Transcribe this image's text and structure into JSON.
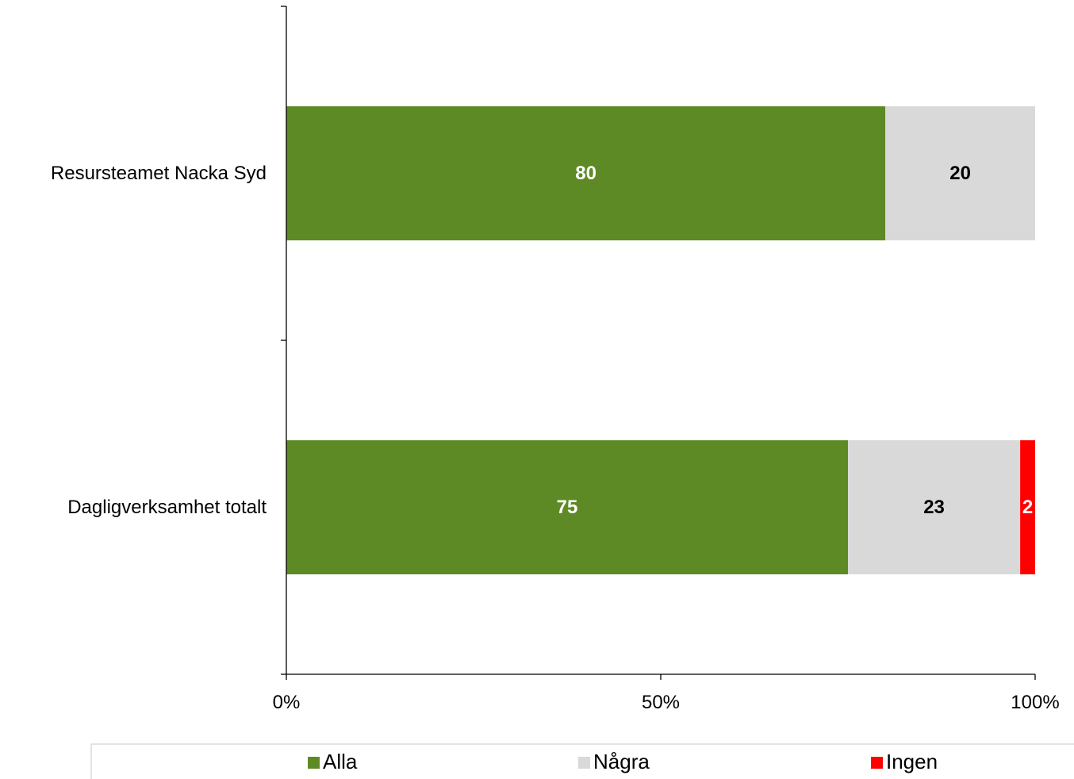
{
  "chart_data": {
    "type": "bar",
    "orientation": "horizontal",
    "stacked": "percent",
    "title": "",
    "xlabel": "",
    "ylabel": "",
    "xlim": [
      0,
      100
    ],
    "categories": [
      "Resursteamet Nacka Syd",
      "Dagligverksamhet totalt"
    ],
    "x_ticks": [
      "0%",
      "50%",
      "100%"
    ],
    "series": [
      {
        "name": "Alla",
        "color": "#5e8a26",
        "label_color": "#ffffff",
        "values": [
          80,
          75
        ],
        "labels": [
          "80",
          "75"
        ]
      },
      {
        "name": "Några",
        "color": "#d9d9d9",
        "label_color": "#000000",
        "values": [
          20,
          23
        ],
        "labels": [
          "20",
          "23"
        ]
      },
      {
        "name": "Ingen",
        "color": "#ff0000",
        "label_color": "#ffffff",
        "values": [
          0,
          2
        ],
        "labels": [
          "0",
          "2"
        ]
      }
    ],
    "grid": false,
    "legend_position": "bottom"
  }
}
